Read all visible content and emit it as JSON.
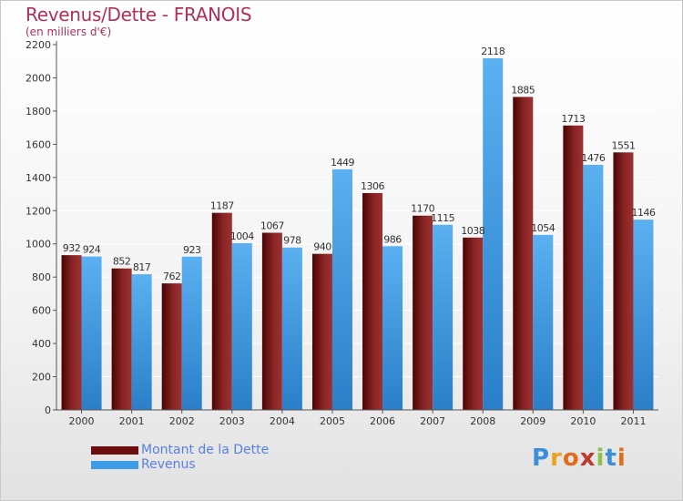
{
  "chart_data": {
    "type": "bar",
    "title": "Revenus/Dette - FRANOIS",
    "subtitle": "(en milliers d'€)",
    "categories": [
      "2000",
      "2001",
      "2002",
      "2003",
      "2004",
      "2005",
      "2006",
      "2007",
      "2008",
      "2009",
      "2010",
      "2011"
    ],
    "series": [
      {
        "name": "Montant de la Dette",
        "color": "#7a1a1a",
        "values": [
          932,
          852,
          762,
          1187,
          1067,
          940,
          1306,
          1170,
          1038,
          1885,
          1713,
          1551
        ]
      },
      {
        "name": "Revenus",
        "color": "#3d9de8",
        "values": [
          924,
          817,
          923,
          1004,
          978,
          1449,
          986,
          1115,
          2118,
          1054,
          1476,
          1146
        ]
      }
    ],
    "ylim": [
      0,
      2200
    ],
    "yticks": [
      0,
      200,
      400,
      600,
      800,
      1000,
      1200,
      1400,
      1600,
      1800,
      2000,
      2200
    ],
    "grid": true,
    "legend_position": "bottom-left"
  },
  "logo": {
    "text": "Proxiti",
    "colors": [
      "#3a8fd6",
      "#e8a21e",
      "#e36c1a",
      "#c0392b",
      "#8bc34a",
      "#3a8fd6",
      "#e36c1a"
    ]
  }
}
